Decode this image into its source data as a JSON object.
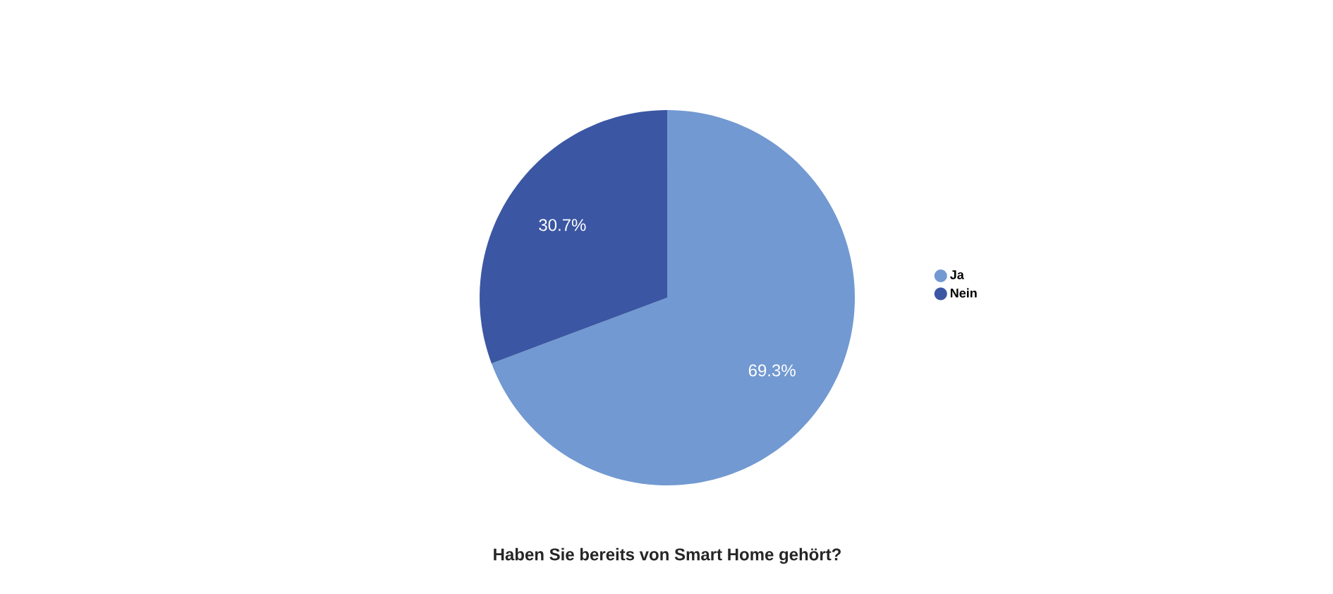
{
  "chart_data": {
    "type": "pie",
    "title": "Haben Sie bereits von Smart Home gehört?",
    "categories": [
      "Ja",
      "Nein"
    ],
    "values": [
      69.3,
      30.7
    ],
    "colors": [
      "#7299d1",
      "#3b56a3"
    ],
    "value_labels": [
      "69.3%",
      "30.7%"
    ],
    "legend": "right"
  }
}
